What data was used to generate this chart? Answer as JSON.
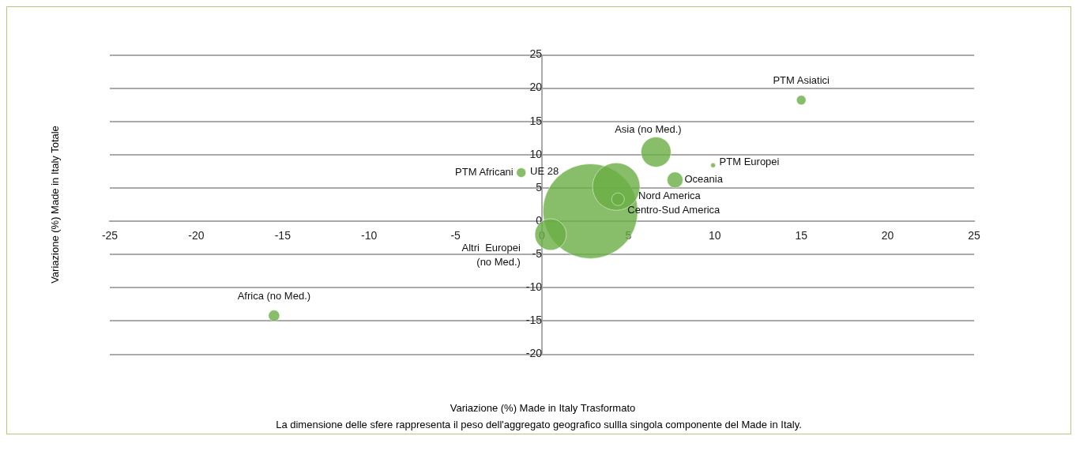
{
  "chart_data": {
    "type": "bubble",
    "xlabel": "Variazione (%)  Made in Italy Trasformato",
    "ylabel": "Variazione (%) Made in Italy Totale",
    "annotations": [
      "La dimensione delle sfere rappresenta il peso  dell'aggregato geografico sullla singola componente del Made in Italy."
    ],
    "xlim": [
      -25,
      25
    ],
    "xticks": [
      -25,
      -20,
      -15,
      -10,
      -5,
      0,
      5,
      10,
      15,
      20,
      25
    ],
    "ylim": [
      -20,
      25
    ],
    "yticks": [
      -20,
      -15,
      -10,
      -5,
      0,
      5,
      10,
      15,
      20,
      25
    ],
    "grid": "y",
    "legend": false,
    "series": [
      {
        "name": "UE 28",
        "color": "#6aae45",
        "x": [
          2.8
        ],
        "values": [
          1.5
        ],
        "sizes": [
          1
        ]
      },
      {
        "name": "Nord America",
        "color": "#6aae45",
        "x": [
          4.3
        ],
        "values": [
          5.2
        ],
        "sizes": [
          0.25
        ]
      },
      {
        "name": "Asia (no Med.)",
        "color": "#6aae45",
        "x": [
          6.6
        ],
        "values": [
          10.4
        ],
        "sizes": [
          0.1
        ]
      },
      {
        "name": "Altri  Europei (no Med.)",
        "color": "#6aae45",
        "x": [
          0.5
        ],
        "values": [
          -2.0
        ],
        "sizes": [
          0.11
        ]
      },
      {
        "name": "Oceania",
        "color": "#6aae45",
        "x": [
          7.7
        ],
        "values": [
          6.2
        ],
        "sizes": [
          0.028
        ]
      },
      {
        "name": "Centro-Sud America",
        "color": "#6aae45",
        "x": [
          4.4
        ],
        "values": [
          3.3
        ],
        "sizes": [
          0.018
        ]
      },
      {
        "name": "PTM Asiatici",
        "color": "#6aae45",
        "x": [
          15.0
        ],
        "values": [
          18.2
        ],
        "sizes": [
          0.01
        ]
      },
      {
        "name": "Africa (no Med.)",
        "color": "#6aae45",
        "x": [
          -15.5
        ],
        "values": [
          -14.2
        ],
        "sizes": [
          0.014
        ]
      },
      {
        "name": "PTM Africani",
        "color": "#6aae45",
        "x": [
          -1.2
        ],
        "values": [
          7.3
        ],
        "sizes": [
          0.01
        ]
      },
      {
        "name": "PTM Europei",
        "color": "#6aae45",
        "x": [
          9.9
        ],
        "values": [
          8.4
        ],
        "sizes": [
          0.0025
        ]
      }
    ]
  }
}
